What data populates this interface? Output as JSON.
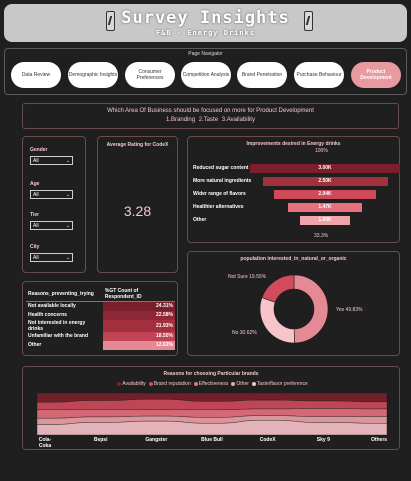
{
  "header": {
    "title": "Survey Insights",
    "subtitle": "F&B - Energy Drinks"
  },
  "nav": {
    "title": "Page Navigator",
    "buttons": [
      {
        "label": "Data Review"
      },
      {
        "label": "Demographic Insights"
      },
      {
        "label": "Consumer Preferences"
      },
      {
        "label": "Competition Analysis"
      },
      {
        "label": "Brand Penetration"
      },
      {
        "label": "Purchase Behaviour"
      },
      {
        "label": "Product Development",
        "active": true
      }
    ]
  },
  "question": {
    "text": "Which Area Of Business should be focused on more for Product Development",
    "answers": "1.Branding   2.Taste   3.Availability"
  },
  "filters": [
    {
      "label": "Gender",
      "value": "All"
    },
    {
      "label": "Age",
      "value": "All"
    },
    {
      "label": "Tier",
      "value": "All"
    },
    {
      "label": "City",
      "value": "All"
    }
  ],
  "rating": {
    "title": "Average Rating for CodeX",
    "value": "3.28"
  },
  "improvements": {
    "title": "Improvements desired in Energy drinks",
    "top_pct": "100%",
    "bottom_pct": "33.3%",
    "rows": [
      {
        "label": "Reduced sugar content",
        "value_text": "3.00K",
        "value": 3.0,
        "color": "#7a1f2b"
      },
      {
        "label": "More natural ingredients",
        "value_text": "2.50K",
        "value": 2.5,
        "color": "#a3303f"
      },
      {
        "label": "Wider range of flavors",
        "value_text": "2.04K",
        "value": 2.04,
        "color": "#d04a5a"
      },
      {
        "label": "Healthier alternatives",
        "value_text": "1.47K",
        "value": 1.47,
        "color": "#e8707e"
      },
      {
        "label": "Other",
        "value_text": "1.00K",
        "value": 1.0,
        "color": "#f2a2aa"
      }
    ]
  },
  "reasons_not": {
    "col1": "Reasons_preventing_trying",
    "col2": "%GT Count of Respondent_ID",
    "rows": [
      {
        "label": "Not available locally",
        "value": "24.31%",
        "pct": 24.31
      },
      {
        "label": "Health concerns",
        "value": "22.58%",
        "pct": 22.58
      },
      {
        "label": "Not interested in energy drinks",
        "value": "21.93%",
        "pct": 21.93
      },
      {
        "label": "Unfamiliar with the brand",
        "value": "18.55%",
        "pct": 18.55
      },
      {
        "label": "Other",
        "value": "12.63%",
        "pct": 12.63
      }
    ]
  },
  "natural": {
    "title": "population interested_in_natural_or_organic",
    "slices": [
      {
        "label": "Yes 49.83%",
        "value": 49.83,
        "color": "#e58a95"
      },
      {
        "label": "No 30.62%",
        "value": 30.62,
        "color": "#f7c4ca"
      },
      {
        "label": "Not Sure 19.55%",
        "value": 19.55,
        "color": "#d24a5b"
      }
    ]
  },
  "brands": {
    "title": "Reasons for choosing Particular brands",
    "legend": [
      {
        "label": "Availability",
        "color": "#7a1f2b"
      },
      {
        "label": "Brand reputation",
        "color": "#d04a5a"
      },
      {
        "label": "Effectiveness",
        "color": "#e8707e"
      },
      {
        "label": "Other",
        "color": "#f2a2aa"
      },
      {
        "label": "Taste/flavor preference",
        "color": "#f7c4ca"
      }
    ],
    "labels": [
      "Cola-Coka",
      "Bepsi",
      "Gangster",
      "Blue Bull",
      "CodeX",
      "Sky 9",
      "Others"
    ]
  }
}
